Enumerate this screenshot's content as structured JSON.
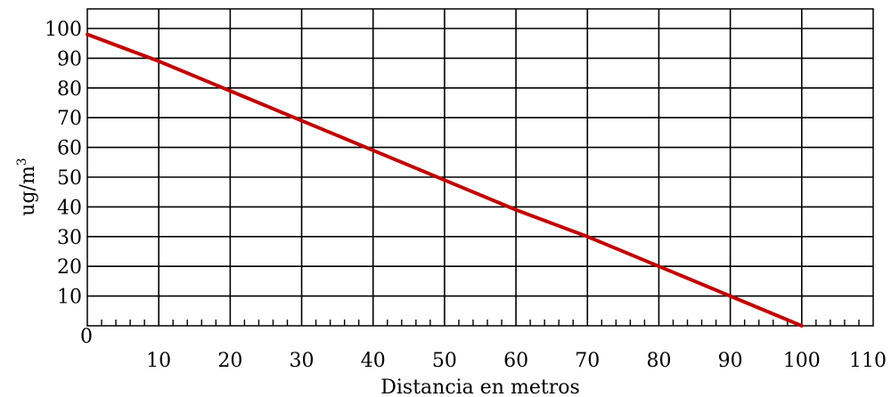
{
  "chart_data": {
    "type": "line",
    "title": "",
    "xlabel": "Distancia en metros",
    "ylabel": "ug/m",
    "ylabel_superscript": "3",
    "xlim": [
      0,
      110
    ],
    "ylim": [
      0,
      100
    ],
    "grid": true,
    "x_ticks": [
      10,
      20,
      30,
      40,
      50,
      60,
      70,
      80,
      90,
      100,
      110
    ],
    "y_ticks": [
      10,
      20,
      30,
      40,
      50,
      60,
      70,
      80,
      90,
      100
    ],
    "origin_label": "0",
    "line_color": "#c00000",
    "series": [
      {
        "x": [
          0,
          10,
          20,
          30,
          40,
          50,
          60,
          70,
          80,
          90,
          100
        ],
        "y": [
          98,
          89,
          79,
          69,
          59,
          49,
          39,
          30,
          20,
          10,
          0
        ]
      }
    ]
  }
}
